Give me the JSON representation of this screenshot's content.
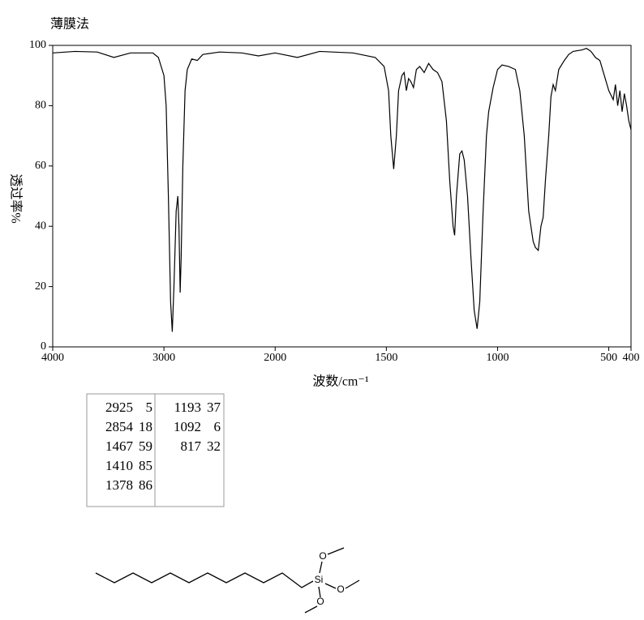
{
  "chart_data": {
    "type": "line",
    "title": "薄膜法",
    "xlabel": "波数/cm⁻¹",
    "ylabel": "透过率%",
    "x": [
      4000,
      3800,
      3600,
      3450,
      3300,
      3100,
      3050,
      3000,
      2980,
      2960,
      2940,
      2925,
      2910,
      2890,
      2875,
      2865,
      2854,
      2845,
      2830,
      2810,
      2790,
      2750,
      2700,
      2650,
      2500,
      2300,
      2150,
      2000,
      1900,
      1800,
      1650,
      1550,
      1510,
      1490,
      1480,
      1467,
      1455,
      1445,
      1430,
      1420,
      1410,
      1400,
      1390,
      1378,
      1365,
      1350,
      1330,
      1310,
      1290,
      1270,
      1250,
      1230,
      1215,
      1200,
      1193,
      1185,
      1170,
      1160,
      1150,
      1135,
      1120,
      1105,
      1092,
      1080,
      1065,
      1050,
      1040,
      1020,
      1000,
      980,
      950,
      920,
      900,
      880,
      860,
      840,
      830,
      817,
      805,
      795,
      785,
      770,
      760,
      750,
      740,
      725,
      700,
      680,
      660,
      620,
      600,
      580,
      560,
      540,
      520,
      500,
      480,
      470,
      460,
      450,
      440,
      430,
      420,
      410,
      400
    ],
    "values": [
      97.5,
      98,
      97.8,
      96,
      97.5,
      97.5,
      96,
      90,
      80,
      50,
      15,
      5,
      20,
      45,
      50,
      40,
      18,
      30,
      60,
      85,
      92,
      95.5,
      95,
      97,
      97.8,
      97.5,
      96.5,
      97.5,
      96,
      98,
      97.5,
      96,
      93,
      85,
      70,
      59,
      70,
      85,
      90,
      91,
      85,
      89,
      88,
      86,
      92,
      93,
      91,
      94,
      92,
      91,
      88,
      75,
      55,
      40,
      37,
      50,
      64,
      65,
      62,
      50,
      30,
      12,
      6,
      15,
      45,
      70,
      78,
      86,
      92,
      93.5,
      93,
      92,
      85,
      70,
      45,
      35,
      33,
      32,
      40,
      43,
      55,
      70,
      83,
      87,
      85,
      92,
      95,
      97,
      98,
      98.5,
      99,
      98,
      96,
      95,
      90,
      85,
      82,
      87,
      80,
      85,
      78,
      84,
      80,
      75,
      72
    ],
    "color": "#000000",
    "xlim": [
      4000,
      400
    ],
    "xscale_change": 2000,
    "xticks": [
      4000,
      3000,
      2000,
      1500,
      1000,
      500,
      400
    ],
    "ylim": [
      0,
      100
    ],
    "yticks": [
      0,
      20,
      40,
      60,
      80,
      100
    ]
  },
  "peak_table": {
    "peaks": [
      [
        "2925",
        "5"
      ],
      [
        "2854",
        "18"
      ],
      [
        "1467",
        "59"
      ],
      [
        "1410",
        "85"
      ],
      [
        "1378",
        "86"
      ],
      [
        "1193",
        "37"
      ],
      [
        "1092",
        "6"
      ],
      [
        "817",
        "32"
      ]
    ]
  },
  "structure": {
    "atoms": [
      "Si",
      "O",
      "O",
      "O"
    ]
  }
}
